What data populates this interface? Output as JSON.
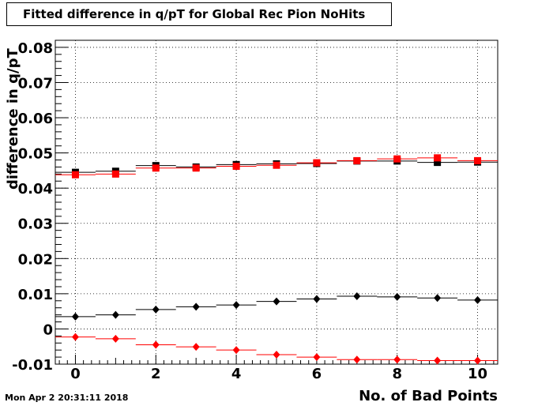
{
  "chart_data": {
    "type": "scatter",
    "title": "Fitted difference in q/pT for Global Rec Pion NoHits",
    "xlabel": "No. of Bad Points",
    "ylabel": "difference in q/pT",
    "xlim": [
      -0.5,
      10.5
    ],
    "ylim": [
      -0.01,
      0.082
    ],
    "x_ticks": [
      "0",
      "2",
      "4",
      "6",
      "8",
      "10"
    ],
    "y_ticks": [
      "-0.01",
      "0",
      "0.01",
      "0.02",
      "0.03",
      "0.04",
      "0.05",
      "0.06",
      "0.07",
      "0.08"
    ],
    "grid": true,
    "x": [
      0,
      1,
      2,
      3,
      4,
      5,
      6,
      7,
      8,
      9,
      10
    ],
    "series": [
      {
        "marker": "square",
        "color": "#000000",
        "values": [
          0.0445,
          0.0448,
          0.0464,
          0.046,
          0.0467,
          0.0469,
          0.047,
          0.0477,
          0.0477,
          0.0473,
          0.0474
        ]
      },
      {
        "marker": "square",
        "color": "#ff0000",
        "values": [
          0.0438,
          0.044,
          0.0457,
          0.0457,
          0.0462,
          0.0465,
          0.0472,
          0.0478,
          0.0483,
          0.0486,
          0.0478
        ]
      },
      {
        "marker": "diamond",
        "color": "#000000",
        "values": [
          0.0035,
          0.004,
          0.0055,
          0.0063,
          0.0068,
          0.0078,
          0.0085,
          0.0093,
          0.0091,
          0.0088,
          0.0082
        ]
      },
      {
        "marker": "diamond",
        "color": "#ff0000",
        "values": [
          -0.0023,
          -0.0028,
          -0.0045,
          -0.0051,
          -0.006,
          -0.0073,
          -0.008,
          -0.0087,
          -0.0087,
          -0.009,
          -0.009
        ]
      }
    ]
  },
  "footer": {
    "date": "Mon Apr  2 20:31:11 2018"
  }
}
